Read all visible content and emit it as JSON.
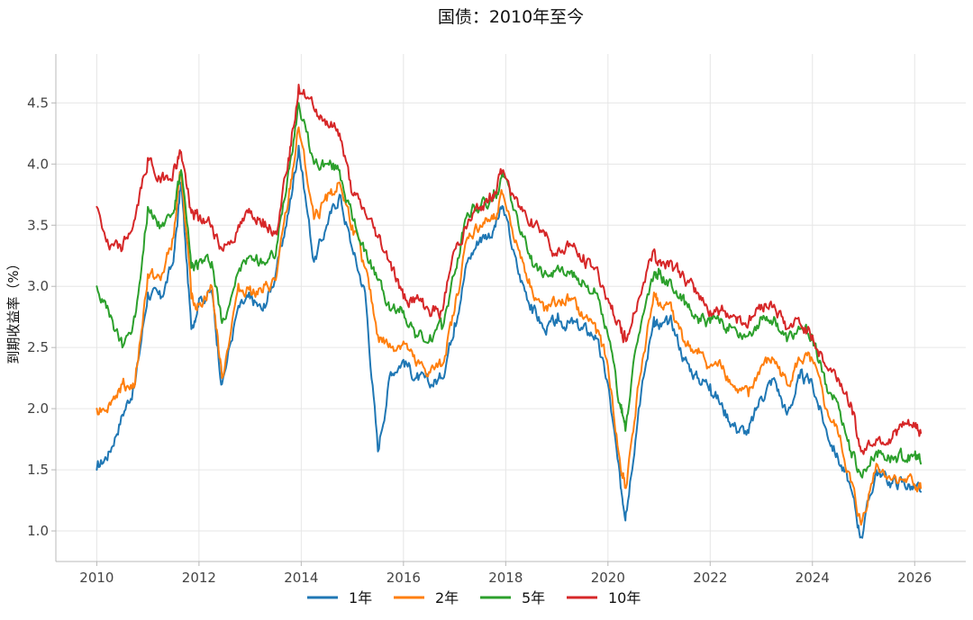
{
  "chart_data": {
    "type": "line",
    "title": "国债：2010年至今",
    "xlabel": "",
    "ylabel": "到期收益率（%）",
    "xlim": [
      2009.2,
      2027.0
    ],
    "ylim": [
      0.75,
      4.9
    ],
    "x_ticks": [
      2010,
      2012,
      2014,
      2016,
      2018,
      2020,
      2022,
      2024,
      2026
    ],
    "y_ticks": [
      1.0,
      1.5,
      2.0,
      2.5,
      3.0,
      3.5,
      4.0,
      4.5
    ],
    "y_tick_labels": [
      "1.0",
      "1.5",
      "2.0",
      "2.5",
      "3.0",
      "3.5",
      "4.0",
      "4.5"
    ],
    "grid": true,
    "legend_position": "bottom-center",
    "x": [
      2010.0,
      2010.25,
      2010.5,
      2010.75,
      2011.0,
      2011.25,
      2011.5,
      2011.65,
      2011.85,
      2012.0,
      2012.25,
      2012.45,
      2012.75,
      2013.0,
      2013.25,
      2013.5,
      2013.75,
      2013.95,
      2014.25,
      2014.5,
      2014.75,
      2015.0,
      2015.25,
      2015.5,
      2015.75,
      2016.0,
      2016.25,
      2016.5,
      2016.75,
      2017.0,
      2017.25,
      2017.5,
      2017.75,
      2017.95,
      2018.25,
      2018.5,
      2018.75,
      2019.0,
      2019.25,
      2019.5,
      2019.75,
      2020.0,
      2020.25,
      2020.35,
      2020.6,
      2020.9,
      2021.0,
      2021.25,
      2021.5,
      2021.75,
      2022.0,
      2022.25,
      2022.5,
      2022.75,
      2023.0,
      2023.25,
      2023.5,
      2023.75,
      2024.0,
      2024.25,
      2024.5,
      2024.75,
      2024.95,
      2025.25,
      2025.5,
      2025.75,
      2026.0,
      2026.12
    ],
    "series": [
      {
        "name": "1年",
        "color": "#1f77b4",
        "values": [
          1.5,
          1.65,
          1.95,
          2.2,
          2.95,
          2.9,
          3.2,
          3.85,
          2.65,
          2.9,
          2.95,
          2.2,
          2.8,
          2.9,
          2.8,
          3.1,
          3.6,
          4.15,
          3.2,
          3.5,
          3.75,
          3.3,
          2.95,
          1.65,
          2.3,
          2.4,
          2.25,
          2.2,
          2.25,
          2.7,
          3.2,
          3.4,
          3.45,
          3.65,
          3.1,
          2.85,
          2.65,
          2.7,
          2.7,
          2.65,
          2.6,
          2.2,
          1.35,
          1.15,
          2.0,
          2.75,
          2.65,
          2.7,
          2.4,
          2.25,
          2.2,
          2.0,
          1.85,
          1.8,
          2.1,
          2.25,
          1.95,
          2.25,
          2.2,
          1.85,
          1.6,
          1.35,
          0.95,
          1.5,
          1.4,
          1.4,
          1.35,
          1.32
        ]
      },
      {
        "name": "2年",
        "color": "#ff7f0e",
        "values": [
          2.0,
          2.05,
          2.2,
          2.2,
          3.1,
          3.05,
          3.4,
          3.95,
          2.9,
          2.85,
          3.0,
          2.25,
          2.95,
          3.0,
          2.95,
          3.05,
          3.7,
          4.3,
          3.55,
          3.7,
          3.85,
          3.5,
          3.15,
          2.6,
          2.5,
          2.55,
          2.35,
          2.3,
          2.35,
          2.8,
          3.4,
          3.5,
          3.55,
          3.75,
          3.3,
          3.0,
          2.8,
          2.85,
          2.9,
          2.75,
          2.7,
          2.35,
          1.5,
          1.35,
          2.2,
          2.95,
          2.85,
          2.8,
          2.55,
          2.45,
          2.35,
          2.35,
          2.15,
          2.1,
          2.35,
          2.4,
          2.2,
          2.4,
          2.4,
          2.0,
          1.8,
          1.4,
          1.05,
          1.55,
          1.45,
          1.42,
          1.38,
          1.35
        ]
      },
      {
        "name": "5年",
        "color": "#2ca02c",
        "values": [
          3.0,
          2.75,
          2.5,
          2.75,
          3.65,
          3.5,
          3.6,
          3.95,
          3.15,
          3.2,
          3.2,
          2.7,
          3.1,
          3.25,
          3.2,
          3.25,
          3.95,
          4.5,
          4.0,
          4.0,
          3.95,
          3.55,
          3.3,
          3.05,
          2.8,
          2.8,
          2.6,
          2.55,
          2.65,
          3.1,
          3.6,
          3.65,
          3.7,
          3.9,
          3.5,
          3.25,
          3.1,
          3.15,
          3.1,
          3.05,
          2.95,
          2.6,
          2.0,
          1.85,
          2.6,
          3.1,
          3.1,
          3.0,
          2.85,
          2.75,
          2.7,
          2.7,
          2.65,
          2.6,
          2.75,
          2.75,
          2.55,
          2.65,
          2.6,
          2.2,
          2.05,
          1.65,
          1.45,
          1.65,
          1.6,
          1.6,
          1.62,
          1.55
        ]
      },
      {
        "name": "10年",
        "color": "#d62728",
        "values": [
          3.65,
          3.3,
          3.3,
          3.55,
          4.05,
          3.85,
          3.95,
          4.1,
          3.6,
          3.55,
          3.5,
          3.3,
          3.45,
          3.6,
          3.55,
          3.45,
          4.05,
          4.65,
          4.45,
          4.35,
          4.25,
          3.75,
          3.6,
          3.4,
          3.2,
          2.9,
          2.9,
          2.8,
          2.8,
          3.3,
          3.5,
          3.65,
          3.75,
          3.95,
          3.65,
          3.55,
          3.45,
          3.25,
          3.35,
          3.2,
          3.15,
          2.9,
          2.65,
          2.55,
          2.9,
          3.3,
          3.2,
          3.2,
          3.05,
          2.95,
          2.8,
          2.8,
          2.75,
          2.7,
          2.85,
          2.85,
          2.65,
          2.7,
          2.6,
          2.35,
          2.25,
          2.05,
          1.65,
          1.75,
          1.75,
          1.85,
          1.85,
          1.8
        ]
      }
    ]
  }
}
